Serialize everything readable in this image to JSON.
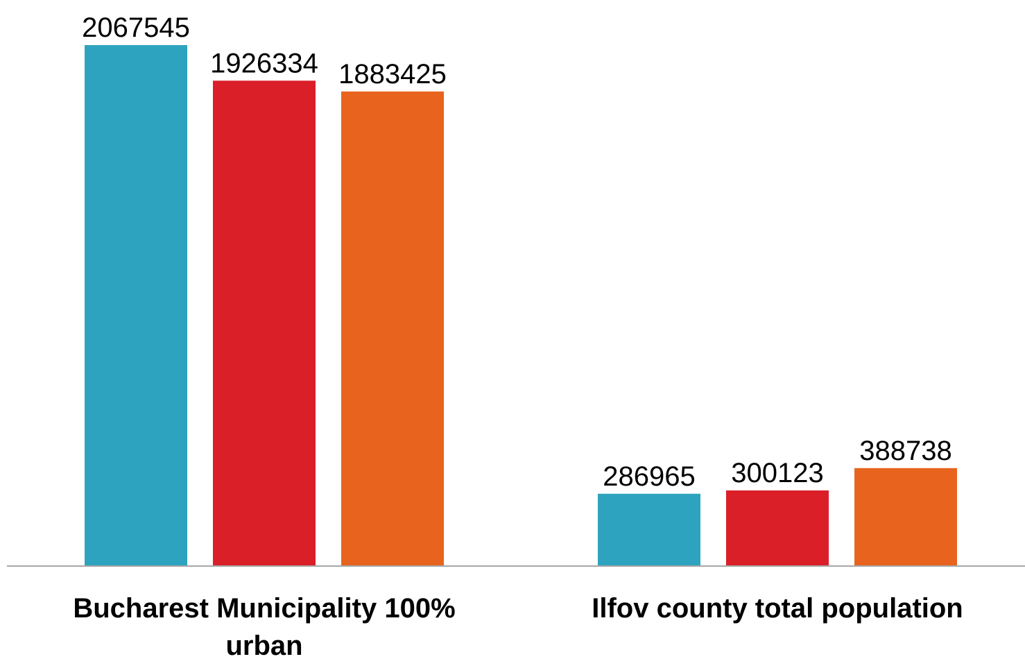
{
  "chart_data": {
    "type": "bar",
    "categories": [
      [
        "Bucharest Municipality 100%",
        "urban"
      ],
      [
        "Ilfov county total population"
      ]
    ],
    "series": [
      {
        "values": [
          2067545,
          286965
        ],
        "color": "#2ea3bf"
      },
      {
        "values": [
          1926334,
          300123
        ],
        "color": "#da1f29"
      },
      {
        "values": [
          1883425,
          388738
        ],
        "color": "#e8641e"
      }
    ],
    "data_labels": [
      [
        "2067545",
        "286965"
      ],
      [
        "1926334",
        "300123"
      ],
      [
        "1883425",
        "388738"
      ]
    ],
    "title": "",
    "xlabel": "",
    "ylabel": "",
    "ylim": [
      0,
      2067545
    ],
    "grid": false,
    "legend": "none",
    "axis_color": "#a6a6a6"
  }
}
